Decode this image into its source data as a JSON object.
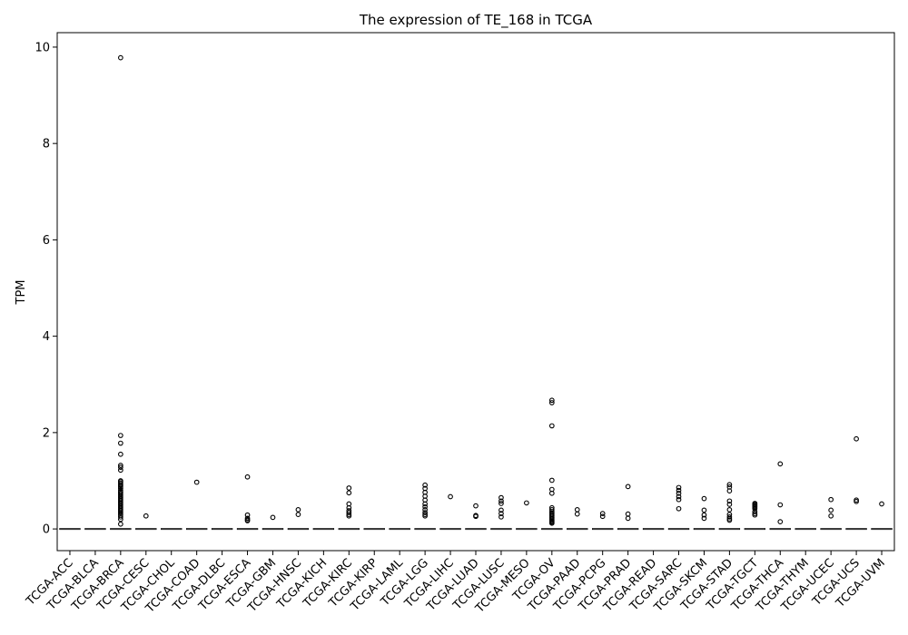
{
  "chart_data": {
    "type": "box",
    "title": "The expression of TE_168 in TCGA",
    "xlabel": "",
    "ylabel": "TPM",
    "ylim": [
      -0.45,
      10.3
    ],
    "yticks": [
      0,
      2,
      4,
      6,
      8,
      10
    ],
    "grid": false,
    "categories": [
      "TCGA-ACC",
      "TCGA-BLCA",
      "TCGA-BRCA",
      "TCGA-CESC",
      "TCGA-CHOL",
      "TCGA-COAD",
      "TCGA-DLBC",
      "TCGA-ESCA",
      "TCGA-GBM",
      "TCGA-HNSC",
      "TCGA-KICH",
      "TCGA-KIRC",
      "TCGA-KIRP",
      "TCGA-LAML",
      "TCGA-LGG",
      "TCGA-LIHC",
      "TCGA-LUAD",
      "TCGA-LUSC",
      "TCGA-MESO",
      "TCGA-OV",
      "TCGA-PAAD",
      "TCGA-PCPG",
      "TCGA-PRAD",
      "TCGA-READ",
      "TCGA-SARC",
      "TCGA-SKCM",
      "TCGA-STAD",
      "TCGA-TGCT",
      "TCGA-THCA",
      "TCGA-THYM",
      "TCGA-UCEC",
      "TCGA-UCS",
      "TCGA-UVM"
    ],
    "median": 0,
    "outliers": [
      [],
      [],
      [
        9.78,
        1.94,
        1.78,
        1.55,
        1.32,
        1.28,
        1.22,
        1.0,
        0.98,
        0.95,
        0.92,
        0.9,
        0.87,
        0.84,
        0.8,
        0.77,
        0.74,
        0.71,
        0.68,
        0.65,
        0.62,
        0.59,
        0.56,
        0.53,
        0.5,
        0.47,
        0.44,
        0.41,
        0.38,
        0.35,
        0.32,
        0.29,
        0.25,
        0.2,
        0.1
      ],
      [
        0.27
      ],
      [],
      [
        0.97
      ],
      [],
      [
        1.08,
        0.29,
        0.22,
        0.19,
        0.17
      ],
      [
        0.24
      ],
      [
        0.4,
        0.3
      ],
      [],
      [
        0.85,
        0.75,
        0.52,
        0.44,
        0.38,
        0.34,
        0.3,
        0.27
      ],
      [],
      [],
      [
        0.91,
        0.84,
        0.76,
        0.68,
        0.6,
        0.52,
        0.46,
        0.4,
        0.34,
        0.3,
        0.27
      ],
      [
        0.67
      ],
      [
        0.48,
        0.28,
        0.26
      ],
      [
        0.65,
        0.58,
        0.53,
        0.39,
        0.32,
        0.25
      ],
      [
        0.54
      ],
      [
        2.67,
        2.62,
        2.14,
        1.01,
        0.82,
        0.74,
        0.44,
        0.4,
        0.36,
        0.33,
        0.3,
        0.27,
        0.24,
        0.21,
        0.18,
        0.16,
        0.14,
        0.12
      ],
      [
        0.4,
        0.31
      ],
      [
        0.32,
        0.26
      ],
      [
        0.88,
        0.31,
        0.22
      ],
      [],
      [
        0.86,
        0.8,
        0.74,
        0.67,
        0.61,
        0.42
      ],
      [
        0.63,
        0.39,
        0.29,
        0.22
      ],
      [
        0.92,
        0.87,
        0.79,
        0.58,
        0.51,
        0.4,
        0.3,
        0.25,
        0.21,
        0.18
      ],
      [
        0.53,
        0.51,
        0.49,
        0.47,
        0.45,
        0.42,
        0.36,
        0.32,
        0.29
      ],
      [
        1.35,
        0.5,
        0.15
      ],
      [],
      [
        0.61,
        0.39,
        0.27
      ],
      [
        1.87,
        0.6,
        0.57
      ],
      [
        0.52
      ]
    ]
  }
}
